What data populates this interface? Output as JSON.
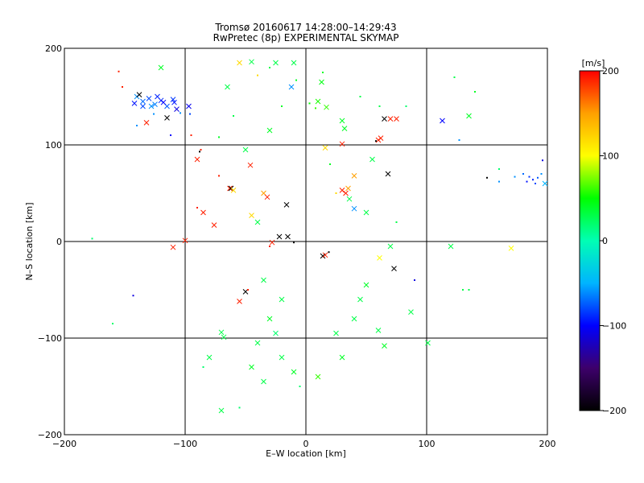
{
  "chart_data": {
    "type": "scatter",
    "title": "Tromsø 20160617 14:28:00–14:29:43",
    "subtitle": "RwPretec (8p) EXPERIMENTAL SKYMAP",
    "xlabel": "E–W location [km]",
    "ylabel": "N–S location [km]",
    "xlim": [
      -200,
      200
    ],
    "ylim": [
      -200,
      200
    ],
    "x_ticks": [
      -200,
      -100,
      0,
      100,
      200
    ],
    "y_ticks": [
      -200,
      -100,
      0,
      100,
      200
    ],
    "x_tick_labels": [
      "−200",
      "−100",
      "0",
      "100",
      "200"
    ],
    "y_tick_labels": [
      "−200",
      "−100",
      "0",
      "100",
      "200"
    ],
    "grid": true,
    "colorbar": {
      "label": "[m/s]",
      "range": [
        -200,
        200
      ],
      "ticks": [
        200,
        100,
        0,
        -100,
        -200
      ],
      "tick_labels": [
        "200",
        "100",
        "0",
        "−100",
        "−200"
      ],
      "colormap": [
        "#000000",
        "#3d006b",
        "#0000ff",
        "#00b4ff",
        "#00ffb4",
        "#00ff00",
        "#ffff00",
        "#ffa000",
        "#ff0000"
      ]
    },
    "markers": {
      "dot": "single-point detection",
      "x": "cross marker"
    },
    "points": [
      {
        "x": -140,
        "y": 150,
        "v": -60,
        "m": "x"
      },
      {
        "x": -135,
        "y": 145,
        "v": -70,
        "m": "x"
      },
      {
        "x": -130,
        "y": 148,
        "v": -80,
        "m": "x"
      },
      {
        "x": -125,
        "y": 142,
        "v": -65,
        "m": "x"
      },
      {
        "x": -120,
        "y": 146,
        "v": -90,
        "m": "x"
      },
      {
        "x": -115,
        "y": 140,
        "v": -75,
        "m": "x"
      },
      {
        "x": -110,
        "y": 147,
        "v": -85,
        "m": "x"
      },
      {
        "x": -142,
        "y": 143,
        "v": -95,
        "m": "x"
      },
      {
        "x": -128,
        "y": 140,
        "v": -60,
        "m": "x"
      },
      {
        "x": -138,
        "y": 152,
        "v": -200,
        "m": "x"
      },
      {
        "x": -132,
        "y": 123,
        "v": 190,
        "m": "x"
      },
      {
        "x": -115,
        "y": 128,
        "v": -200,
        "m": "x"
      },
      {
        "x": -107,
        "y": 137,
        "v": -110,
        "m": "x"
      },
      {
        "x": -97,
        "y": 140,
        "v": -105,
        "m": "x"
      },
      {
        "x": -104,
        "y": 133,
        "v": -60,
        "m": "dot"
      },
      {
        "x": -155,
        "y": 176,
        "v": 190,
        "m": "dot"
      },
      {
        "x": -152,
        "y": 160,
        "v": 190,
        "m": "dot"
      },
      {
        "x": -120,
        "y": 180,
        "v": 40,
        "m": "x"
      },
      {
        "x": -112,
        "y": 110,
        "v": -100,
        "m": "dot"
      },
      {
        "x": -95,
        "y": 110,
        "v": 190,
        "m": "dot"
      },
      {
        "x": -87,
        "y": 95,
        "v": 190,
        "m": "dot"
      },
      {
        "x": -88,
        "y": 93,
        "v": -200,
        "m": "dot"
      },
      {
        "x": -90,
        "y": 85,
        "v": 190,
        "m": "x"
      },
      {
        "x": -63,
        "y": 55,
        "v": 190,
        "m": "x"
      },
      {
        "x": -62,
        "y": 55,
        "v": -200,
        "m": "x"
      },
      {
        "x": -60,
        "y": 53,
        "v": 120,
        "m": "x"
      },
      {
        "x": -46,
        "y": 79,
        "v": 190,
        "m": "x"
      },
      {
        "x": -72,
        "y": 68,
        "v": 190,
        "m": "dot"
      },
      {
        "x": -90,
        "y": 35,
        "v": 190,
        "m": "dot"
      },
      {
        "x": -85,
        "y": 30,
        "v": 190,
        "m": "x"
      },
      {
        "x": -76,
        "y": 17,
        "v": 190,
        "m": "x"
      },
      {
        "x": -100,
        "y": 1,
        "v": 190,
        "m": "x"
      },
      {
        "x": -110,
        "y": -6,
        "v": 190,
        "m": "x"
      },
      {
        "x": -160,
        "y": -85,
        "v": 20,
        "m": "dot"
      },
      {
        "x": -143,
        "y": -56,
        "v": -110,
        "m": "dot"
      },
      {
        "x": -177,
        "y": 3,
        "v": 20,
        "m": "dot"
      },
      {
        "x": -55,
        "y": -62,
        "v": 190,
        "m": "x"
      },
      {
        "x": -50,
        "y": -52,
        "v": -200,
        "m": "x"
      },
      {
        "x": -48,
        "y": -50,
        "v": 190,
        "m": "dot"
      },
      {
        "x": -45,
        "y": 27,
        "v": 120,
        "m": "x"
      },
      {
        "x": -35,
        "y": 50,
        "v": 150,
        "m": "x"
      },
      {
        "x": -32,
        "y": 46,
        "v": 190,
        "m": "x"
      },
      {
        "x": -16,
        "y": 38,
        "v": -200,
        "m": "x"
      },
      {
        "x": -15,
        "y": 5,
        "v": -200,
        "m": "x"
      },
      {
        "x": -22,
        "y": 5,
        "v": -200,
        "m": "x"
      },
      {
        "x": -28,
        "y": -1,
        "v": 190,
        "m": "x"
      },
      {
        "x": -30,
        "y": -5,
        "v": 190,
        "m": "dot"
      },
      {
        "x": -10,
        "y": -1,
        "v": -200,
        "m": "dot"
      },
      {
        "x": -45,
        "y": 186,
        "v": 30,
        "m": "x"
      },
      {
        "x": -55,
        "y": 185,
        "v": 120,
        "m": "x"
      },
      {
        "x": -25,
        "y": 185,
        "v": 30,
        "m": "x"
      },
      {
        "x": -10,
        "y": 185,
        "v": 30,
        "m": "x"
      },
      {
        "x": -30,
        "y": 180,
        "v": 30,
        "m": "dot"
      },
      {
        "x": -40,
        "y": 172,
        "v": 120,
        "m": "dot"
      },
      {
        "x": -80,
        "y": -120,
        "v": 30,
        "m": "x"
      },
      {
        "x": -70,
        "y": -94,
        "v": 30,
        "m": "x"
      },
      {
        "x": -70,
        "y": -175,
        "v": 30,
        "m": "x"
      },
      {
        "x": -35,
        "y": -145,
        "v": 30,
        "m": "x"
      },
      {
        "x": -10,
        "y": -135,
        "v": 40,
        "m": "x"
      },
      {
        "x": -5,
        "y": -150,
        "v": 20,
        "m": "dot"
      },
      {
        "x": 10,
        "y": -140,
        "v": 60,
        "m": "x"
      },
      {
        "x": -12,
        "y": 160,
        "v": -60,
        "m": "x"
      },
      {
        "x": -8,
        "y": 167,
        "v": 40,
        "m": "dot"
      },
      {
        "x": 14,
        "y": 175,
        "v": 40,
        "m": "dot"
      },
      {
        "x": 13,
        "y": 165,
        "v": 45,
        "m": "x"
      },
      {
        "x": 10,
        "y": 145,
        "v": 55,
        "m": "x"
      },
      {
        "x": 3,
        "y": 143,
        "v": 50,
        "m": "dot"
      },
      {
        "x": 8,
        "y": 138,
        "v": 60,
        "m": "dot"
      },
      {
        "x": 17,
        "y": 139,
        "v": 60,
        "m": "x"
      },
      {
        "x": 32,
        "y": 117,
        "v": 40,
        "m": "x"
      },
      {
        "x": 30,
        "y": 101,
        "v": 190,
        "m": "x"
      },
      {
        "x": 16,
        "y": 97,
        "v": 120,
        "m": "x"
      },
      {
        "x": 20,
        "y": 80,
        "v": 40,
        "m": "dot"
      },
      {
        "x": 40,
        "y": 68,
        "v": 150,
        "m": "x"
      },
      {
        "x": 35,
        "y": 55,
        "v": 150,
        "m": "x"
      },
      {
        "x": 33,
        "y": 50,
        "v": 190,
        "m": "x"
      },
      {
        "x": 30,
        "y": 53,
        "v": 190,
        "m": "x"
      },
      {
        "x": 25,
        "y": 50,
        "v": 120,
        "m": "dot"
      },
      {
        "x": 36,
        "y": 44,
        "v": 30,
        "m": "x"
      },
      {
        "x": 40,
        "y": 34,
        "v": -60,
        "m": "x"
      },
      {
        "x": 14,
        "y": -15,
        "v": -200,
        "m": "x"
      },
      {
        "x": 16,
        "y": -14,
        "v": 190,
        "m": "x"
      },
      {
        "x": 19,
        "y": -11,
        "v": -200,
        "m": "dot"
      },
      {
        "x": 61,
        "y": -17,
        "v": 100,
        "m": "x"
      },
      {
        "x": 73,
        "y": -28,
        "v": -200,
        "m": "x"
      },
      {
        "x": 90,
        "y": -40,
        "v": -110,
        "m": "dot"
      },
      {
        "x": 87,
        "y": -73,
        "v": 30,
        "m": "x"
      },
      {
        "x": 60,
        "y": -92,
        "v": 30,
        "m": "x"
      },
      {
        "x": 65,
        "y": -108,
        "v": 40,
        "m": "x"
      },
      {
        "x": 101,
        "y": -105,
        "v": 30,
        "m": "x"
      },
      {
        "x": 60,
        "y": 105,
        "v": 190,
        "m": "x"
      },
      {
        "x": 62,
        "y": 107,
        "v": 190,
        "m": "x"
      },
      {
        "x": 58,
        "y": 104,
        "v": -200,
        "m": "dot"
      },
      {
        "x": 65,
        "y": 127,
        "v": -200,
        "m": "x"
      },
      {
        "x": 70,
        "y": 127,
        "v": 190,
        "m": "x"
      },
      {
        "x": 75,
        "y": 127,
        "v": 190,
        "m": "x"
      },
      {
        "x": 61,
        "y": 140,
        "v": 30,
        "m": "dot"
      },
      {
        "x": 83,
        "y": 140,
        "v": 20,
        "m": "dot"
      },
      {
        "x": 68,
        "y": 70,
        "v": -200,
        "m": "x"
      },
      {
        "x": 113,
        "y": 125,
        "v": -100,
        "m": "x"
      },
      {
        "x": 120,
        "y": -5,
        "v": 30,
        "m": "x"
      },
      {
        "x": 130,
        "y": -50,
        "v": 30,
        "m": "dot"
      },
      {
        "x": 135,
        "y": 130,
        "v": 40,
        "m": "x"
      },
      {
        "x": 140,
        "y": 155,
        "v": 40,
        "m": "dot"
      },
      {
        "x": 123,
        "y": 170,
        "v": 30,
        "m": "dot"
      },
      {
        "x": 127,
        "y": 105,
        "v": -60,
        "m": "dot"
      },
      {
        "x": 160,
        "y": 75,
        "v": 20,
        "m": "dot"
      },
      {
        "x": 150,
        "y": 66,
        "v": -200,
        "m": "dot"
      },
      {
        "x": 170,
        "y": -7,
        "v": 100,
        "m": "x"
      },
      {
        "x": 160,
        "y": 62,
        "v": -60,
        "m": "dot"
      },
      {
        "x": 180,
        "y": 70,
        "v": -70,
        "m": "dot"
      },
      {
        "x": 185,
        "y": 67,
        "v": -85,
        "m": "dot"
      },
      {
        "x": 188,
        "y": 64,
        "v": -90,
        "m": "dot"
      },
      {
        "x": 190,
        "y": 60,
        "v": -80,
        "m": "dot"
      },
      {
        "x": 183,
        "y": 62,
        "v": -95,
        "m": "dot"
      },
      {
        "x": 192,
        "y": 66,
        "v": -75,
        "m": "dot"
      },
      {
        "x": 195,
        "y": 70,
        "v": -60,
        "m": "dot"
      },
      {
        "x": 198,
        "y": 60,
        "v": -50,
        "m": "x"
      },
      {
        "x": 196,
        "y": 84,
        "v": -110,
        "m": "dot"
      },
      {
        "x": 173,
        "y": 67,
        "v": -60,
        "m": "dot"
      },
      {
        "x": 135,
        "y": -50,
        "v": 30,
        "m": "dot"
      },
      {
        "x": -72,
        "y": 108,
        "v": 40,
        "m": "dot"
      },
      {
        "x": -140,
        "y": 120,
        "v": -60,
        "m": "dot"
      },
      {
        "x": -123,
        "y": 150,
        "v": -90,
        "m": "x"
      },
      {
        "x": -118,
        "y": 144,
        "v": -100,
        "m": "x"
      },
      {
        "x": -126,
        "y": 132,
        "v": -60,
        "m": "dot"
      },
      {
        "x": -109,
        "y": 144,
        "v": -95,
        "m": "x"
      },
      {
        "x": -135,
        "y": 140,
        "v": -80,
        "m": "x"
      },
      {
        "x": -96,
        "y": 132,
        "v": -80,
        "m": "dot"
      },
      {
        "x": -55,
        "y": -172,
        "v": 20,
        "m": "dot"
      },
      {
        "x": -68,
        "y": -99,
        "v": 30,
        "m": "x"
      },
      {
        "x": -85,
        "y": -130,
        "v": 20,
        "m": "dot"
      },
      {
        "x": -45,
        "y": -130,
        "v": 40,
        "m": "x"
      },
      {
        "x": -40,
        "y": -105,
        "v": 30,
        "m": "x"
      },
      {
        "x": -20,
        "y": -120,
        "v": 30,
        "m": "x"
      },
      {
        "x": -25,
        "y": -95,
        "v": 20,
        "m": "x"
      },
      {
        "x": 30,
        "y": -120,
        "v": 40,
        "m": "x"
      },
      {
        "x": 25,
        "y": -95,
        "v": 30,
        "m": "x"
      },
      {
        "x": 40,
        "y": -80,
        "v": 30,
        "m": "x"
      },
      {
        "x": 45,
        "y": -60,
        "v": 30,
        "m": "x"
      },
      {
        "x": 50,
        "y": -45,
        "v": 40,
        "m": "x"
      },
      {
        "x": -35,
        "y": -40,
        "v": 30,
        "m": "x"
      },
      {
        "x": -20,
        "y": -60,
        "v": 30,
        "m": "x"
      },
      {
        "x": -30,
        "y": -80,
        "v": 40,
        "m": "x"
      },
      {
        "x": -40,
        "y": 20,
        "v": 30,
        "m": "x"
      },
      {
        "x": -50,
        "y": 95,
        "v": 30,
        "m": "x"
      },
      {
        "x": -60,
        "y": 130,
        "v": 30,
        "m": "dot"
      },
      {
        "x": -65,
        "y": 160,
        "v": 30,
        "m": "x"
      },
      {
        "x": -30,
        "y": 115,
        "v": 40,
        "m": "x"
      },
      {
        "x": -20,
        "y": 140,
        "v": 40,
        "m": "dot"
      },
      {
        "x": 45,
        "y": 150,
        "v": 30,
        "m": "dot"
      },
      {
        "x": 30,
        "y": 125,
        "v": 40,
        "m": "x"
      },
      {
        "x": 55,
        "y": 85,
        "v": 30,
        "m": "x"
      },
      {
        "x": 50,
        "y": 30,
        "v": 30,
        "m": "x"
      },
      {
        "x": 75,
        "y": 20,
        "v": 30,
        "m": "dot"
      },
      {
        "x": 70,
        "y": -5,
        "v": 30,
        "m": "x"
      }
    ]
  }
}
